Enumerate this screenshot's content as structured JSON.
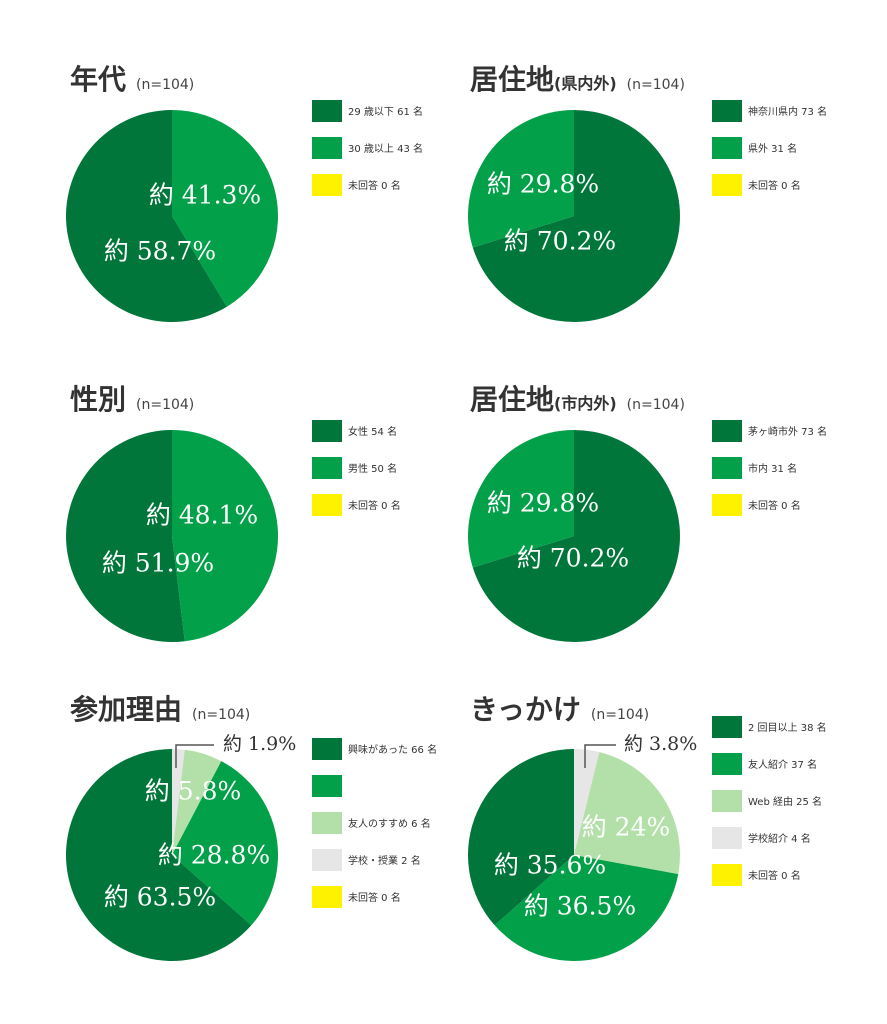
{
  "colors": {
    "dark_green": "#00763a",
    "mid_green": "#03a04a",
    "light_green": "#b3e0a8",
    "light_gray": "#e6e6e6",
    "yellow": "#fff200"
  },
  "chart_data": [
    {
      "type": "pie",
      "title": "年代",
      "title_sub": "",
      "n_label": "(n=104)",
      "legend": [
        "29 歳以下 61 名",
        "30 歳以上 43 名",
        "未回答 0 名"
      ],
      "legend_colors": [
        "#00763a",
        "#03a04a",
        "#fff200"
      ],
      "slices": [
        {
          "value": 43,
          "color": "#03a04a",
          "label": "約 41.3%"
        },
        {
          "value": 61,
          "color": "#00763a",
          "label": "約 58.7%"
        }
      ]
    },
    {
      "type": "pie",
      "title": "居住地",
      "title_sub": "(県内外)",
      "n_label": "(n=104)",
      "legend": [
        "神奈川県内 73 名",
        "県外 31 名",
        "未回答 0 名"
      ],
      "legend_colors": [
        "#00763a",
        "#03a04a",
        "#fff200"
      ],
      "slices": [
        {
          "value": 73,
          "color": "#00763a",
          "label": "約 70.2%"
        },
        {
          "value": 31,
          "color": "#03a04a",
          "label": "約 29.8%"
        }
      ]
    },
    {
      "type": "pie",
      "title": "性別",
      "title_sub": "",
      "n_label": "(n=104)",
      "legend": [
        "女性 54 名",
        "男性 50 名",
        "未回答 0 名"
      ],
      "legend_colors": [
        "#00763a",
        "#03a04a",
        "#fff200"
      ],
      "slices": [
        {
          "value": 50,
          "color": "#03a04a",
          "label": "約 48.1%"
        },
        {
          "value": 54,
          "color": "#00763a",
          "label": "約 51.9%"
        }
      ]
    },
    {
      "type": "pie",
      "title": "居住地",
      "title_sub": "(市内外)",
      "n_label": "(n=104)",
      "legend": [
        "茅ヶ崎市外 73 名",
        "市内 31 名",
        "未回答 0 名"
      ],
      "legend_colors": [
        "#00763a",
        "#03a04a",
        "#fff200"
      ],
      "slices": [
        {
          "value": 73,
          "color": "#00763a",
          "label": "約 70.2%"
        },
        {
          "value": 31,
          "color": "#03a04a",
          "label": "約 29.8%"
        }
      ]
    },
    {
      "type": "pie",
      "title": "参加理由",
      "title_sub": "",
      "n_label": "(n=104)",
      "legend": [
        "興味があった 66 名",
        "",
        "友人のすすめ 6 名",
        "学校・授業 2 名",
        "未回答 0 名"
      ],
      "legend_colors": [
        "#00763a",
        "#03a04a",
        "#b3e0a8",
        "#e6e6e6",
        "#fff200"
      ],
      "slices": [
        {
          "value": 2,
          "color": "#e6e6e6",
          "label": "約 1.9%"
        },
        {
          "value": 6,
          "color": "#b3e0a8",
          "label": "約 5.8%"
        },
        {
          "value": 30,
          "color": "#03a04a",
          "label": "約 28.8%"
        },
        {
          "value": 66,
          "color": "#00763a",
          "label": "約 63.5%"
        }
      ]
    },
    {
      "type": "pie",
      "title": "きっかけ",
      "title_sub": "",
      "n_label": "(n=104)",
      "legend": [
        "2 回目以上 38 名",
        "友人紹介 37 名",
        "Web 経由 25 名",
        "学校紹介 4 名",
        "未回答 0 名"
      ],
      "legend_colors": [
        "#00763a",
        "#03a04a",
        "#b3e0a8",
        "#e6e6e6",
        "#fff200"
      ],
      "slices": [
        {
          "value": 4,
          "color": "#e6e6e6",
          "label": "約 3.8%"
        },
        {
          "value": 25,
          "color": "#b3e0a8",
          "label": "約 24%"
        },
        {
          "value": 37,
          "color": "#03a04a",
          "label": "約 35.6%"
        },
        {
          "value": 38,
          "color": "#00763a",
          "label": "約 36.5%"
        }
      ]
    }
  ]
}
